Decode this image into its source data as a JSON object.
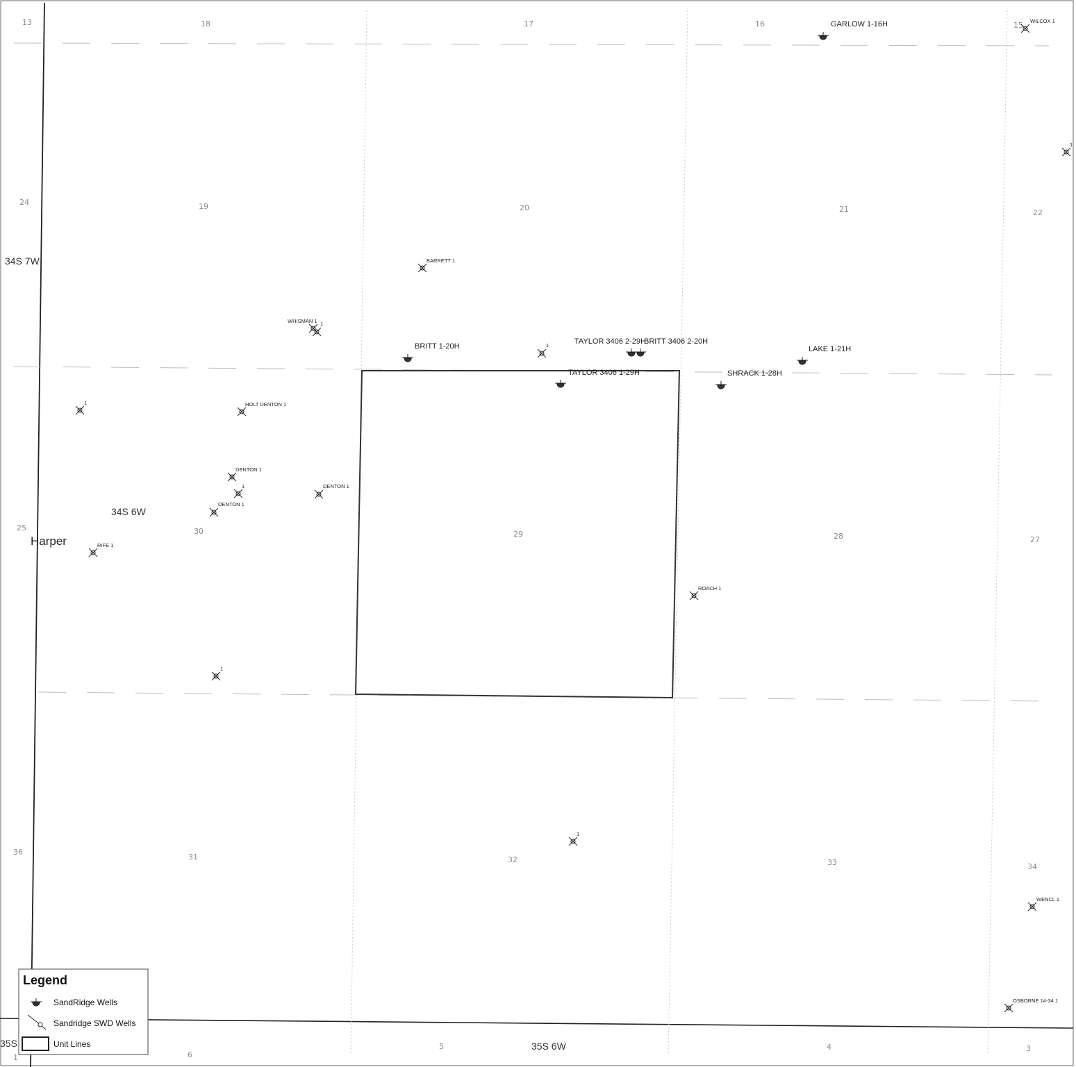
{
  "county": "Harper",
  "townships": {
    "t34s7w": "34S 7W",
    "t34s6w": "34S 6W",
    "t35s6w": "35S 6W",
    "t35s_partial": "35S"
  },
  "sections": {
    "s13": "13",
    "s18": "18",
    "s17": "17",
    "s16": "16",
    "s15": "15",
    "s24": "24",
    "s19": "19",
    "s20": "20",
    "s21": "21",
    "s22": "22",
    "s25": "25",
    "s30": "30",
    "s29": "29",
    "s28": "28",
    "s27": "27",
    "s36": "36",
    "s31": "31",
    "s32": "32",
    "s33": "33",
    "s34": "34",
    "s1": "1",
    "s6": "6",
    "s5": "5",
    "s4": "4",
    "s3": "3"
  },
  "wells": {
    "garlow": "GARLOW 1-16H",
    "wilcox": "WILCOX 1",
    "barrett": "BARRETT 1",
    "whisman": "WHISMAN 1",
    "whisman_num": "1",
    "britt_1_20h": "BRITT 1-20H",
    "taylor_2_29h": "TAYLOR 3406 2-29H",
    "britt_2_20h": "BRITT 3406 2-20H",
    "taylor_1_29h": "TAYLOR 3406 1-29H",
    "lake": "LAKE 1-21H",
    "shrack": "SHRACK 1-28H",
    "holt_denton": "HOLT DENTON 1",
    "denton_a": "DENTON 1",
    "denton_b": "DENTON 1",
    "denton_c": "DENTON 1",
    "rife": "RIFE 1",
    "roach": "ROACH 1",
    "wencl": "WENCL 1",
    "osborne": "OSBORNE 14-34 1",
    "unnamed_1": "1",
    "unnamed_2": "1",
    "unnamed_3": "1",
    "unnamed_4": "1",
    "unnamed_5": "1",
    "unnamed_6": "1"
  },
  "legend": {
    "title": "Legend",
    "sandridge_wells": "SandRidge Wells",
    "swd_wells": "Sandridge SWD Wells",
    "unit_lines": "Unit Lines"
  }
}
